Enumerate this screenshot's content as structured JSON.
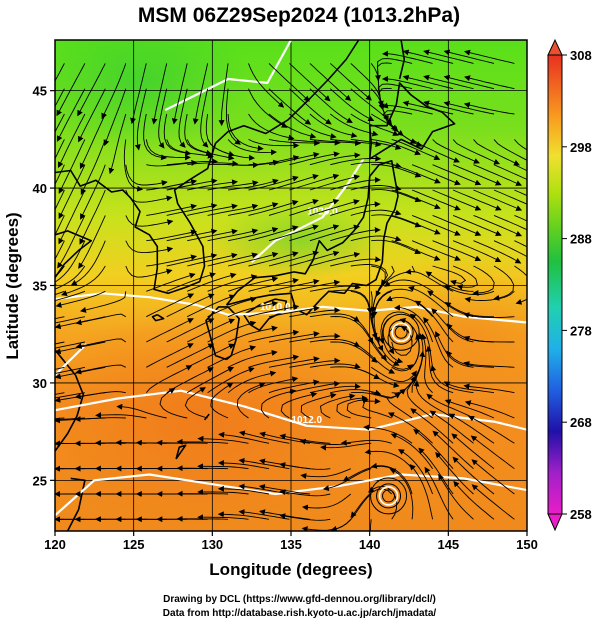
{
  "title": "MSM 06Z29Sep2024 (1013.2hPa)",
  "xlabel": "Longitude (degrees)",
  "ylabel": "Latitude  (degrees)",
  "credits": [
    "Drawing by DCL (https://www.gfd-dennou.org/library/dcl/)",
    "Data from http://database.rish.kyoto-u.ac.jp/arch/jmadata/"
  ],
  "contour_labels": [
    "1010.0",
    "1012.0",
    "1020.0",
    "1012.0"
  ],
  "chart_data": {
    "type": "heatmap",
    "x_range": [
      120,
      150
    ],
    "y_range": [
      22.4,
      47.6
    ],
    "x_ticks": [
      120,
      125,
      130,
      135,
      140,
      145,
      150
    ],
    "y_ticks": [
      25,
      30,
      35,
      40,
      45
    ],
    "grid": true,
    "colorbar": {
      "ticks": [
        258,
        268,
        278,
        288,
        298,
        308
      ],
      "range": [
        258,
        308
      ],
      "colors": [
        "#e81ec8",
        "#a020c8",
        "#2010a8",
        "#2060e0",
        "#20b0e8",
        "#20d0b0",
        "#20c040",
        "#60d020",
        "#b0e010",
        "#f0e030",
        "#f8a020",
        "#f06020",
        "#e83020"
      ],
      "placement": "right"
    },
    "temperature_field": [
      {
        "lon": 121,
        "lat": 46,
        "value": 290
      },
      {
        "lon": 130,
        "lat": 46,
        "value": 291
      },
      {
        "lon": 140,
        "lat": 46,
        "value": 290
      },
      {
        "lon": 148,
        "lat": 46,
        "value": 291
      },
      {
        "lon": 121,
        "lat": 41,
        "value": 292
      },
      {
        "lon": 130,
        "lat": 41,
        "value": 292
      },
      {
        "lon": 140,
        "lat": 41,
        "value": 291
      },
      {
        "lon": 148,
        "lat": 41,
        "value": 292
      },
      {
        "lon": 121,
        "lat": 36,
        "value": 295
      },
      {
        "lon": 130,
        "lat": 36,
        "value": 294
      },
      {
        "lon": 140,
        "lat": 36,
        "value": 294
      },
      {
        "lon": 148,
        "lat": 36,
        "value": 297
      },
      {
        "lon": 121,
        "lat": 31,
        "value": 299
      },
      {
        "lon": 130,
        "lat": 31,
        "value": 299
      },
      {
        "lon": 140,
        "lat": 31,
        "value": 299
      },
      {
        "lon": 148,
        "lat": 31,
        "value": 300
      },
      {
        "lon": 121,
        "lat": 25,
        "value": 300
      },
      {
        "lon": 130,
        "lat": 25,
        "value": 301
      },
      {
        "lon": 140,
        "lat": 25,
        "value": 301
      },
      {
        "lon": 148,
        "lat": 25,
        "value": 301
      }
    ],
    "isobars": [
      {
        "label": "1010.0",
        "points": [
          [
            120,
            34.3
          ],
          [
            123,
            34.6
          ],
          [
            126,
            34.4
          ],
          [
            129,
            34.0
          ],
          [
            131,
            33.5
          ],
          [
            134,
            33.6
          ],
          [
            137,
            33.9
          ],
          [
            140,
            33.7
          ],
          [
            143,
            33.9
          ],
          [
            146,
            33.4
          ],
          [
            150,
            33.1
          ]
        ]
      },
      {
        "label": "1012.0",
        "points": [
          [
            120,
            28.6
          ],
          [
            124,
            29.2
          ],
          [
            128,
            29.6
          ],
          [
            132,
            28.8
          ],
          [
            136,
            27.8
          ],
          [
            140,
            27.6
          ],
          [
            144,
            28.4
          ],
          [
            148,
            28.0
          ],
          [
            150,
            27.6
          ]
        ]
      },
      {
        "label": "1020.0",
        "points": [
          [
            132.5,
            36.2
          ],
          [
            134,
            37.3
          ],
          [
            137,
            38.5
          ],
          [
            138.6,
            40.2
          ],
          [
            139.6,
            41.5
          ]
        ]
      },
      {
        "label": "",
        "points": [
          [
            127,
            44.0
          ],
          [
            129,
            44.8
          ],
          [
            131,
            45.6
          ],
          [
            133.5,
            45.4
          ],
          [
            135,
            47.6
          ]
        ]
      },
      {
        "label": "",
        "points": [
          [
            120,
            30.4
          ],
          [
            121,
            31.2
          ],
          [
            122,
            32.0
          ]
        ]
      },
      {
        "label": "",
        "points": [
          [
            120,
            23.2
          ],
          [
            122.5,
            25.0
          ],
          [
            126,
            25.3
          ],
          [
            130,
            24.8
          ],
          [
            134,
            24.3
          ],
          [
            138,
            24.7
          ],
          [
            142,
            25.3
          ],
          [
            146,
            25.1
          ],
          [
            150,
            24.5
          ]
        ]
      }
    ],
    "wind_field": [
      {
        "lon": 121,
        "lat": 46,
        "u": -4,
        "v": -6
      },
      {
        "lon": 128,
        "lat": 46,
        "u": -2,
        "v": -7
      },
      {
        "lon": 136,
        "lat": 46,
        "u": 4,
        "v": -3
      },
      {
        "lon": 145,
        "lat": 46,
        "u": -5,
        "v": 1
      },
      {
        "lon": 121,
        "lat": 39,
        "u": -3,
        "v": -5
      },
      {
        "lon": 128,
        "lat": 39,
        "u": 6,
        "v": 1
      },
      {
        "lon": 136,
        "lat": 39,
        "u": 8,
        "v": 2
      },
      {
        "lon": 145,
        "lat": 39,
        "u": 6,
        "v": -2
      },
      {
        "lon": 121,
        "lat": 32,
        "u": -6,
        "v": -1
      },
      {
        "lon": 128,
        "lat": 32,
        "u": 5,
        "v": 2
      },
      {
        "lon": 136,
        "lat": 32,
        "u": 7,
        "v": 1
      },
      {
        "lon": 145,
        "lat": 32,
        "u": -4,
        "v": 0
      },
      {
        "lon": 121,
        "lat": 25,
        "u": -7,
        "v": 0
      },
      {
        "lon": 128,
        "lat": 25,
        "u": -8,
        "v": 0
      },
      {
        "lon": 136,
        "lat": 25,
        "u": -7,
        "v": 1
      },
      {
        "lon": 145,
        "lat": 25,
        "u": -3,
        "v": 2
      }
    ],
    "cyclones": [
      {
        "lon": 141.2,
        "lat": 24.2
      },
      {
        "lon": 142.0,
        "lat": 32.6
      }
    ],
    "coastlines": [
      [
        [
          130.9,
          31.2
        ],
        [
          130.2,
          31.4
        ],
        [
          129.8,
          32.6
        ],
        [
          129.6,
          33.2
        ],
        [
          130.4,
          33.9
        ],
        [
          131.0,
          33.9
        ],
        [
          131.7,
          33.3
        ],
        [
          131.5,
          32.2
        ],
        [
          131.2,
          31.4
        ],
        [
          130.9,
          31.2
        ]
      ],
      [
        [
          132.0,
          33.5
        ],
        [
          132.4,
          33.0
        ],
        [
          133.0,
          32.7
        ],
        [
          133.6,
          33.3
        ],
        [
          134.6,
          33.7
        ],
        [
          134.7,
          34.2
        ],
        [
          134.0,
          34.3
        ],
        [
          133.0,
          34.0
        ],
        [
          132.0,
          33.5
        ]
      ],
      [
        [
          130.9,
          34.0
        ],
        [
          132.3,
          34.3
        ],
        [
          133.6,
          34.5
        ],
        [
          135.0,
          34.6
        ],
        [
          135.3,
          33.8
        ],
        [
          136.0,
          33.5
        ],
        [
          136.9,
          34.3
        ],
        [
          137.4,
          34.7
        ],
        [
          138.4,
          34.6
        ],
        [
          138.9,
          35.1
        ],
        [
          139.8,
          35.0
        ],
        [
          140.4,
          35.3
        ],
        [
          140.8,
          36.2
        ],
        [
          140.9,
          37.4
        ],
        [
          141.1,
          38.2
        ],
        [
          141.6,
          38.9
        ],
        [
          141.8,
          39.6
        ],
        [
          141.6,
          40.5
        ],
        [
          141.4,
          41.4
        ],
        [
          140.6,
          41.2
        ],
        [
          140.0,
          40.6
        ],
        [
          139.9,
          39.5
        ],
        [
          139.6,
          38.5
        ],
        [
          139.0,
          37.8
        ],
        [
          138.3,
          37.2
        ],
        [
          137.3,
          36.8
        ],
        [
          136.8,
          37.3
        ],
        [
          136.4,
          36.3
        ],
        [
          135.9,
          35.6
        ],
        [
          135.2,
          35.7
        ],
        [
          134.0,
          35.5
        ],
        [
          132.7,
          35.4
        ],
        [
          131.6,
          34.7
        ],
        [
          130.9,
          34.0
        ]
      ],
      [
        [
          140.0,
          41.5
        ],
        [
          140.1,
          42.3
        ],
        [
          140.0,
          43.2
        ],
        [
          141.1,
          43.2
        ],
        [
          141.7,
          44.3
        ],
        [
          141.9,
          45.4
        ],
        [
          142.6,
          44.8
        ],
        [
          143.6,
          44.2
        ],
        [
          144.6,
          43.9
        ],
        [
          145.4,
          43.3
        ],
        [
          144.0,
          42.9
        ],
        [
          143.3,
          42.0
        ],
        [
          142.0,
          42.5
        ],
        [
          141.0,
          42.0
        ],
        [
          140.0,
          41.5
        ]
      ],
      [
        [
          141.9,
          45.6
        ],
        [
          142.2,
          46.6
        ],
        [
          142.0,
          47.6
        ]
      ],
      [
        [
          120.0,
          40.8
        ],
        [
          121.0,
          40.9
        ],
        [
          121.6,
          40.1
        ],
        [
          122.6,
          40.4
        ],
        [
          123.6,
          39.8
        ],
        [
          124.3,
          39.9
        ],
        [
          124.8,
          39.5
        ],
        [
          125.4,
          38.8
        ],
        [
          125.1,
          38.0
        ],
        [
          126.0,
          37.6
        ],
        [
          126.5,
          37.0
        ],
        [
          126.5,
          35.9
        ],
        [
          126.3,
          34.8
        ],
        [
          127.2,
          34.6
        ],
        [
          128.3,
          34.9
        ],
        [
          129.2,
          35.2
        ],
        [
          129.5,
          36.0
        ],
        [
          129.4,
          37.0
        ],
        [
          128.6,
          38.2
        ],
        [
          127.8,
          39.2
        ],
        [
          127.6,
          39.9
        ],
        [
          128.5,
          40.4
        ],
        [
          129.7,
          41.0
        ],
        [
          130.2,
          42.3
        ],
        [
          131.0,
          42.9
        ],
        [
          132.0,
          43.2
        ],
        [
          133.4,
          42.8
        ],
        [
          134.8,
          43.5
        ],
        [
          136.2,
          44.6
        ],
        [
          137.4,
          45.6
        ],
        [
          138.5,
          46.6
        ],
        [
          139.3,
          47.6
        ]
      ],
      [
        [
          120.0,
          37.6
        ],
        [
          120.8,
          37.8
        ],
        [
          122.3,
          37.3
        ],
        [
          121.5,
          36.8
        ],
        [
          120.6,
          36.1
        ],
        [
          119.9,
          35.3
        ]
      ],
      [
        [
          120.0,
          31.7
        ],
        [
          120.6,
          31.1
        ],
        [
          121.3,
          30.4
        ],
        [
          121.8,
          29.4
        ],
        [
          121.4,
          28.3
        ],
        [
          120.8,
          27.4
        ],
        [
          120.0,
          26.5
        ]
      ],
      [
        [
          121.0,
          25.1
        ],
        [
          121.9,
          25.0
        ],
        [
          121.5,
          23.5
        ],
        [
          120.8,
          22.4
        ]
      ],
      [
        [
          126.5,
          33.5
        ],
        [
          126.9,
          33.3
        ],
        [
          126.4,
          33.2
        ],
        [
          126.2,
          33.4
        ],
        [
          126.5,
          33.5
        ]
      ],
      [
        [
          127.7,
          26.1
        ],
        [
          128.3,
          26.8
        ],
        [
          127.9,
          26.7
        ],
        [
          127.7,
          26.1
        ]
      ],
      [
        [
          129.8,
          28.4
        ],
        [
          129.5,
          28.1
        ]
      ]
    ]
  }
}
